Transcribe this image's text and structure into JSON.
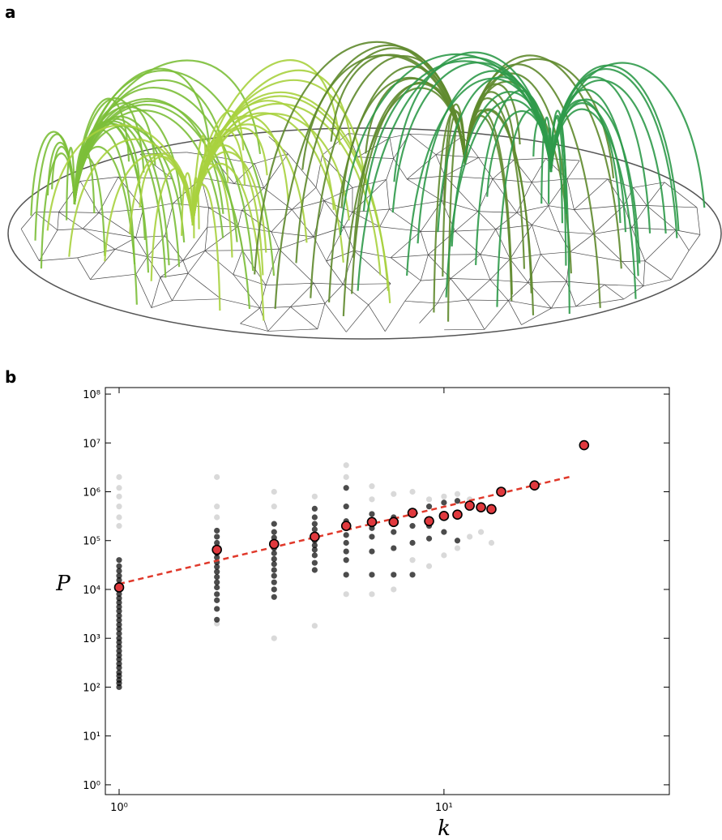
{
  "panel_a": "a",
  "panel_b": "b",
  "chart_data": {
    "type": "scatter",
    "xlabel": "k",
    "ylabel": "P",
    "xscale": "log",
    "yscale": "log",
    "xlim": [
      0.907,
      49.4
    ],
    "ylim": [
      0.63,
      136000000
    ],
    "xticks": [
      {
        "value": 1,
        "label": "10⁰"
      },
      {
        "value": 10,
        "label": "10¹"
      }
    ],
    "yticks": [
      {
        "value": 1,
        "label": "10⁰"
      },
      {
        "value": 10,
        "label": "10¹"
      },
      {
        "value": 100,
        "label": "10²"
      },
      {
        "value": 1000,
        "label": "10³"
      },
      {
        "value": 10000,
        "label": "10⁴"
      },
      {
        "value": 100000,
        "label": "10⁵"
      },
      {
        "value": 1000000,
        "label": "10⁶"
      },
      {
        "value": 10000000,
        "label": "10⁷"
      },
      {
        "value": 100000000,
        "label": "10⁸"
      }
    ],
    "series": [
      {
        "type": "scatter",
        "color": "#000000",
        "opacity": 0.15,
        "x": [
          1,
          1,
          1,
          1,
          1,
          1,
          2,
          2,
          2,
          2,
          3,
          3,
          3,
          4,
          4,
          5,
          5,
          5,
          6,
          6,
          6,
          7,
          7,
          8,
          8,
          9,
          9,
          10,
          10,
          11,
          11,
          12,
          12,
          13,
          14
        ],
        "values": [
          200000,
          300000,
          500000,
          800000,
          1200000,
          2000000,
          2000000,
          500000,
          300000,
          2000,
          1000,
          500000,
          1000000,
          1800,
          800000,
          3500000,
          2000000,
          8000,
          8000,
          1300000,
          700000,
          10000,
          900000,
          40000,
          1000000,
          30000,
          700000,
          50000,
          800000,
          70000,
          900000,
          120000,
          700000,
          150000,
          90000
        ]
      },
      {
        "type": "scatter",
        "color": "#000000",
        "opacity": 0.7,
        "x": [
          1,
          1,
          1,
          1,
          1,
          1,
          1,
          1,
          1,
          1,
          1,
          1,
          1,
          1,
          1,
          1,
          1,
          1,
          1,
          1,
          1,
          1,
          1,
          1,
          1,
          1,
          1,
          1,
          1,
          1,
          2,
          2,
          2,
          2,
          2,
          2,
          2,
          2,
          2,
          2,
          2,
          2,
          2,
          2,
          2,
          2,
          3,
          3,
          3,
          3,
          3,
          3,
          3,
          3,
          3,
          3,
          3,
          3,
          3,
          4,
          4,
          4,
          4,
          4,
          4,
          4,
          4,
          4,
          4,
          4,
          5,
          5,
          5,
          5,
          5,
          5,
          5,
          5,
          5,
          6,
          6,
          6,
          6,
          6,
          6,
          7,
          7,
          7,
          7,
          8,
          8,
          8,
          8,
          9,
          9,
          9,
          10,
          10,
          10,
          11,
          11
        ],
        "values": [
          100,
          120,
          140,
          170,
          200,
          250,
          300,
          370,
          450,
          550,
          680,
          830,
          1000,
          1250,
          1550,
          1900,
          2350,
          2900,
          3600,
          4400,
          5400,
          6600,
          8100,
          10000,
          12500,
          15500,
          19000,
          24000,
          30000,
          40000,
          2400,
          4000,
          6000,
          8000,
          11000,
          14000,
          18000,
          23000,
          29000,
          36000,
          45000,
          55000,
          70000,
          90000,
          120000,
          160000,
          7000,
          10000,
          14000,
          19000,
          25000,
          33000,
          42000,
          55000,
          70000,
          90000,
          115000,
          150000,
          220000,
          25000,
          35000,
          50000,
          65000,
          80000,
          100000,
          130000,
          170000,
          220000,
          300000,
          450000,
          20000,
          40000,
          60000,
          90000,
          130000,
          180000,
          250000,
          500000,
          1200000,
          20000,
          60000,
          120000,
          180000,
          260000,
          350000,
          20000,
          70000,
          150000,
          300000,
          20000,
          90000,
          200000,
          400000,
          110000,
          200000,
          500000,
          150000,
          300000,
          600000,
          100000,
          650000
        ]
      },
      {
        "type": "line",
        "color": "#e0392b",
        "dashed": true,
        "x": [
          1,
          25
        ],
        "values": [
          13000,
          2100000
        ]
      },
      {
        "type": "scatter",
        "color": "#e0393e",
        "outline": "#000000",
        "opacity": 1,
        "x": [
          1,
          2,
          3,
          4,
          5,
          6,
          7,
          8,
          9,
          10,
          11,
          12,
          13,
          14,
          15,
          19,
          27
        ],
        "values": [
          11000,
          65000,
          85000,
          120000,
          200000,
          240000,
          240000,
          370000,
          250000,
          320000,
          340000,
          520000,
          480000,
          440000,
          1000000,
          1350000,
          9000000
        ]
      }
    ]
  }
}
